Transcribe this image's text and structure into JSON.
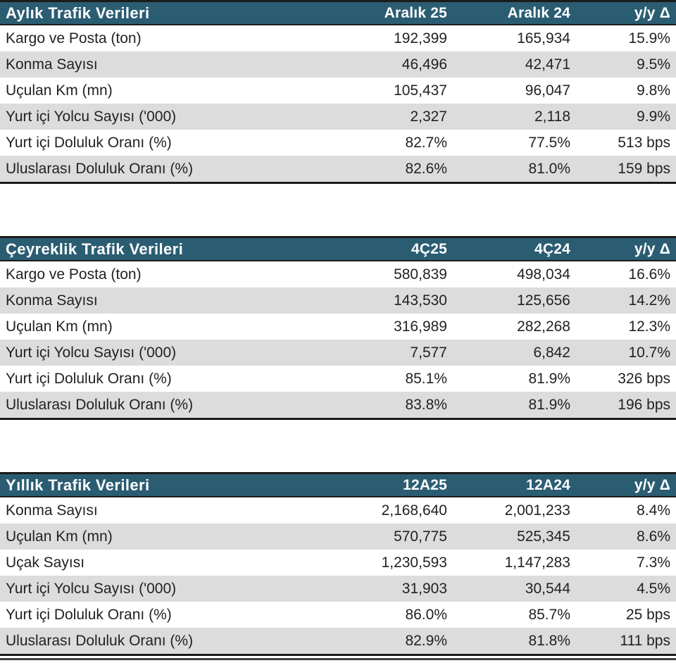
{
  "theme": {
    "header_bg": "#2B5D72",
    "header_text": "#FFFFFF",
    "row_stripe_bg": "#DCDCDC",
    "row_bg": "#FFFFFF",
    "text_color": "#222222",
    "border_color": "#1B1B1B"
  },
  "tables": [
    {
      "title": "Aylık Trafik Verileri",
      "columns": [
        "Aralık 25",
        "Aralık 24",
        "y/y Δ"
      ],
      "rows": [
        {
          "label": "Kargo ve Posta (ton)",
          "values": [
            "192,399",
            "165,934",
            "15.9%"
          ]
        },
        {
          "label": "Konma Sayısı",
          "values": [
            "46,496",
            "42,471",
            "9.5%"
          ]
        },
        {
          "label": "Uçulan Km (mn)",
          "values": [
            "105,437",
            "96,047",
            "9.8%"
          ]
        },
        {
          "label": "Yurt içi Yolcu Sayısı ('000)",
          "values": [
            "2,327",
            "2,118",
            "9.9%"
          ]
        },
        {
          "label": "Yurt içi Doluluk Oranı (%)",
          "values": [
            "82.7%",
            "77.5%",
            "513 bps"
          ]
        },
        {
          "label": "Uluslarası Doluluk Oranı (%)",
          "values": [
            "82.6%",
            "81.0%",
            "159 bps"
          ]
        }
      ]
    },
    {
      "title": "Çeyreklik Trafik Verileri",
      "columns": [
        "4Ç25",
        "4Ç24",
        "y/y Δ"
      ],
      "rows": [
        {
          "label": "Kargo ve Posta (ton)",
          "values": [
            "580,839",
            "498,034",
            "16.6%"
          ]
        },
        {
          "label": "Konma Sayısı",
          "values": [
            "143,530",
            "125,656",
            "14.2%"
          ]
        },
        {
          "label": "Uçulan Km (mn)",
          "values": [
            "316,989",
            "282,268",
            "12.3%"
          ]
        },
        {
          "label": "Yurt içi Yolcu Sayısı ('000)",
          "values": [
            "7,577",
            "6,842",
            "10.7%"
          ]
        },
        {
          "label": "Yurt içi Doluluk Oranı (%)",
          "values": [
            "85.1%",
            "81.9%",
            "326 bps"
          ]
        },
        {
          "label": "Uluslarası Doluluk Oranı (%)",
          "values": [
            "83.8%",
            "81.9%",
            "196 bps"
          ]
        }
      ]
    },
    {
      "title": "Yıllık Trafik Verileri",
      "columns": [
        "12A25",
        "12A24",
        "y/y Δ"
      ],
      "rows": [
        {
          "label": "Konma Sayısı",
          "values": [
            "2,168,640",
            "2,001,233",
            "8.4%"
          ]
        },
        {
          "label": "Uçulan Km (mn)",
          "values": [
            "570,775",
            "525,345",
            "8.6%"
          ]
        },
        {
          "label": "Uçak Sayısı",
          "values": [
            "1,230,593",
            "1,147,283",
            "7.3%"
          ]
        },
        {
          "label": "Yurt içi Yolcu Sayısı ('000)",
          "values": [
            "31,903",
            "30,544",
            "4.5%"
          ]
        },
        {
          "label": "Yurt içi Doluluk Oranı (%)",
          "values": [
            "86.0%",
            "85.7%",
            "25 bps"
          ]
        },
        {
          "label": "Uluslarası Doluluk Oranı (%)",
          "values": [
            "82.9%",
            "81.8%",
            "111 bps"
          ]
        }
      ]
    }
  ]
}
